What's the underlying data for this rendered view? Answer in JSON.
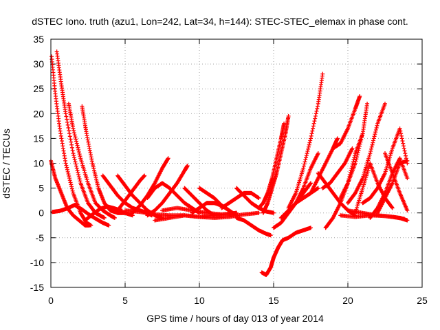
{
  "chart_data": {
    "type": "scatter",
    "title": "dSTEC Iono. truth (azu1, Lon=242, Lat=34, h=144): STEC-STEC_elemax in phase cont.",
    "xlabel": "GPS time / hours of day 013 of year 2014",
    "ylabel": "dSTEC  / TECUs",
    "xlim": [
      0,
      25
    ],
    "ylim": [
      -15,
      35
    ],
    "xticks": [
      0,
      5,
      10,
      15,
      20,
      25
    ],
    "yticks": [
      -15,
      -10,
      -5,
      0,
      5,
      10,
      15,
      20,
      25,
      30,
      35
    ],
    "grid": true,
    "marker": "+",
    "color": "#ff0000",
    "series": [
      {
        "x": [
          0.05,
          0.3,
          0.6,
          1.0,
          1.5,
          2.0,
          2.4,
          2.7
        ],
        "y": [
          31.5,
          24,
          17,
          10,
          4,
          0,
          -2,
          -2.5
        ]
      },
      {
        "x": [
          0.4,
          0.7,
          1.0,
          1.5,
          2.0,
          2.5,
          3.0,
          3.3,
          3.6
        ],
        "y": [
          32.5,
          26,
          20,
          12,
          6,
          2,
          0,
          -0.5,
          -1
        ]
      },
      {
        "x": [
          1.2,
          1.5,
          2.0,
          2.5,
          3.0,
          3.5,
          4.0,
          4.3
        ],
        "y": [
          22,
          17,
          11,
          6,
          2,
          0.5,
          -0.5,
          -1
        ]
      },
      {
        "x": [
          2.1,
          2.4,
          2.8,
          3.2,
          3.6,
          4.0,
          4.5,
          5.0,
          5.5
        ],
        "y": [
          21.5,
          16,
          10,
          5,
          2,
          0.5,
          0,
          0,
          -0.5
        ]
      },
      {
        "x": [
          0.0,
          0.3,
          0.7,
          1.1,
          1.5,
          1.9,
          2.3,
          2.6
        ],
        "y": [
          10.5,
          7,
          4,
          1,
          -0.5,
          -1.5,
          -2.5,
          -2.5
        ]
      },
      {
        "x": [
          0.1,
          0.6,
          1.1,
          1.6,
          2.1,
          2.6,
          3.1,
          3.5,
          3.9
        ],
        "y": [
          0.2,
          0.4,
          0.9,
          1.6,
          0.7,
          -0.4,
          -1.3,
          -2.0,
          -2.5
        ]
      },
      {
        "x": [
          2.3,
          2.8,
          3.3,
          3.8,
          4.3,
          4.8
        ],
        "y": [
          -1.5,
          -0.3,
          0.8,
          1.3,
          0.9,
          0.4
        ]
      },
      {
        "x": [
          3.5,
          4.0,
          4.5,
          5.0,
          5.5,
          6.0,
          6.5,
          6.8
        ],
        "y": [
          7.5,
          5.5,
          3.5,
          2,
          1,
          0.5,
          0,
          -0.5
        ]
      },
      {
        "x": [
          4.5,
          5.0,
          5.5,
          6.0,
          6.5,
          7.0,
          7.5
        ],
        "y": [
          7.5,
          5.5,
          3.5,
          2,
          0.5,
          -0.5,
          -1
        ]
      },
      {
        "x": [
          4.5,
          5.0,
          5.5,
          6.0,
          6.3
        ],
        "y": [
          0.5,
          2.5,
          4.5,
          6.5,
          7.5
        ]
      },
      {
        "x": [
          5.5,
          6.0,
          6.5,
          7.0,
          7.5,
          7.9
        ],
        "y": [
          0,
          1.5,
          3.5,
          6,
          9,
          11
        ]
      },
      {
        "x": [
          6.5,
          7.0,
          7.5,
          8.0,
          8.5,
          9.0,
          9.2
        ],
        "y": [
          -0.5,
          0.5,
          2,
          4,
          6,
          8.5,
          9.5
        ]
      },
      {
        "x": [
          6.5,
          7.0,
          7.5,
          8.0,
          8.5,
          9.0,
          9.5,
          10.0
        ],
        "y": [
          3,
          5,
          6,
          5,
          3.5,
          2,
          1,
          0
        ]
      },
      {
        "x": [
          5.0,
          6.0,
          7.0,
          8.0,
          9.0,
          10.0,
          11.0,
          12.0,
          12.5
        ],
        "y": [
          0.5,
          0.2,
          -0.3,
          -0.5,
          -0.5,
          -0.8,
          -0.5,
          -0.2,
          0
        ]
      },
      {
        "x": [
          7.0,
          8.0,
          9.0,
          10.0,
          11.0,
          12.0,
          13.0,
          14.0
        ],
        "y": [
          -1.5,
          -1,
          -0.5,
          -0.8,
          -1,
          -0.8,
          -0.3,
          0
        ]
      },
      {
        "x": [
          7.5,
          8.5,
          9.5,
          10.5,
          11.5,
          12.5
        ],
        "y": [
          0.5,
          1,
          0.5,
          0,
          -0.3,
          0
        ]
      },
      {
        "x": [
          9.0,
          9.5,
          10.0,
          10.5,
          11.0
        ],
        "y": [
          5,
          3.5,
          2,
          0.5,
          -0.5
        ]
      },
      {
        "x": [
          10.0,
          10.5,
          11.0,
          11.5,
          12.0,
          12.5
        ],
        "y": [
          5,
          4,
          3,
          1.5,
          0.5,
          -0.5
        ]
      },
      {
        "x": [
          9.5,
          10.0,
          10.5,
          11.0,
          11.5,
          12.0
        ],
        "y": [
          0,
          1,
          2,
          2,
          1.5,
          0.5
        ]
      },
      {
        "x": [
          11.5,
          12.0,
          12.5,
          13.0,
          13.5,
          14.0
        ],
        "y": [
          1,
          2,
          3,
          4,
          4,
          3
        ]
      },
      {
        "x": [
          12.5,
          13.0,
          13.5,
          14.0,
          14.5,
          15.0
        ],
        "y": [
          5,
          3.5,
          2,
          1,
          0.3,
          0
        ]
      },
      {
        "x": [
          12.5,
          13.0,
          13.5,
          14.0,
          14.5,
          14.8
        ],
        "y": [
          -1,
          -1.5,
          -2.5,
          -3.5,
          -4.2,
          -4.5
        ]
      },
      {
        "x": [
          14.0,
          14.3,
          14.6,
          14.9,
          15.2,
          15.5,
          15.7
        ],
        "y": [
          1,
          2,
          4,
          7,
          11,
          15,
          18
        ]
      },
      {
        "x": [
          14.3,
          14.6,
          14.9,
          15.2,
          15.5,
          15.8,
          16.0
        ],
        "y": [
          0,
          2,
          5,
          8,
          12,
          16,
          19.5
        ]
      },
      {
        "x": [
          14.2,
          14.5,
          14.8,
          15.0,
          15.3,
          15.6,
          16.0,
          16.5,
          17.0,
          17.5
        ],
        "y": [
          -12,
          -12.5,
          -11,
          -9,
          -7,
          -5.5,
          -5,
          -4,
          -3.5,
          -3
        ]
      },
      {
        "x": [
          15.0,
          15.5,
          16.0,
          16.5,
          17.0,
          17.5
        ],
        "y": [
          -3,
          -2,
          0,
          2,
          4,
          6
        ]
      },
      {
        "x": [
          15.5,
          16.0,
          16.5,
          17.0,
          17.5,
          18.0
        ],
        "y": [
          -1,
          0.5,
          2,
          3,
          4,
          5
        ]
      },
      {
        "x": [
          16.0,
          16.5,
          17.0,
          17.5,
          18.0,
          18.3
        ],
        "y": [
          1,
          4,
          9,
          15,
          22,
          28
        ]
      },
      {
        "x": [
          16.5,
          17.0,
          17.5,
          18.0
        ],
        "y": [
          2,
          5,
          9,
          12
        ]
      },
      {
        "x": [
          17.0,
          17.5,
          18.0,
          18.5,
          19.0,
          19.3
        ],
        "y": [
          3,
          4,
          7,
          10,
          13,
          15
        ]
      },
      {
        "x": [
          18.0,
          18.5,
          19.0,
          19.5,
          20.0,
          20.5
        ],
        "y": [
          8,
          6,
          4,
          2,
          0.5,
          -0.5
        ]
      },
      {
        "x": [
          18.3,
          18.8,
          19.3,
          19.8,
          20.3
        ],
        "y": [
          5,
          6,
          8,
          10,
          13
        ]
      },
      {
        "x": [
          18.5,
          19.0,
          19.5,
          20.0,
          20.5,
          21.0
        ],
        "y": [
          -3,
          -1,
          2,
          6,
          12,
          16
        ]
      },
      {
        "x": [
          19.0,
          19.5,
          20.0,
          20.5,
          20.8
        ],
        "y": [
          13,
          14,
          17,
          21,
          23.5
        ]
      },
      {
        "x": [
          19.5,
          20.0,
          20.5,
          21.0,
          21.3
        ],
        "y": [
          3,
          6,
          10,
          16,
          22
        ]
      },
      {
        "x": [
          20.0,
          20.5,
          21.0,
          21.5,
          22.0,
          22.5
        ],
        "y": [
          2,
          4,
          7,
          12,
          18,
          22
        ]
      },
      {
        "x": [
          20.5,
          21.0,
          21.5,
          22.0,
          22.5,
          23.0
        ],
        "y": [
          0,
          5,
          10,
          6,
          3,
          1
        ]
      },
      {
        "x": [
          21.0,
          21.5,
          22.0,
          22.5,
          23.0,
          23.5,
          24.0
        ],
        "y": [
          2,
          3,
          5,
          8,
          13,
          17,
          10
        ]
      },
      {
        "x": [
          21.5,
          22.0,
          22.5,
          23.0,
          23.5,
          24.0
        ],
        "y": [
          -1,
          1,
          4,
          8,
          11,
          7
        ]
      },
      {
        "x": [
          22.0,
          22.5,
          23.0,
          23.5,
          24.0
        ],
        "y": [
          0,
          3,
          6,
          10,
          10.5
        ]
      },
      {
        "x": [
          22.5,
          23.0,
          23.5,
          24.0
        ],
        "y": [
          12,
          8,
          4,
          0.5
        ]
      },
      {
        "x": [
          19.5,
          20.5,
          21.5,
          22.5,
          23.5,
          24.0
        ],
        "y": [
          -0.5,
          -0.8,
          -0.5,
          -0.6,
          -1,
          -1.5
        ]
      },
      {
        "x": [
          20.0,
          21.0,
          22.0,
          23.0,
          23.8
        ],
        "y": [
          0.5,
          0,
          -0.5,
          -0.8,
          -1.2
        ]
      }
    ]
  }
}
